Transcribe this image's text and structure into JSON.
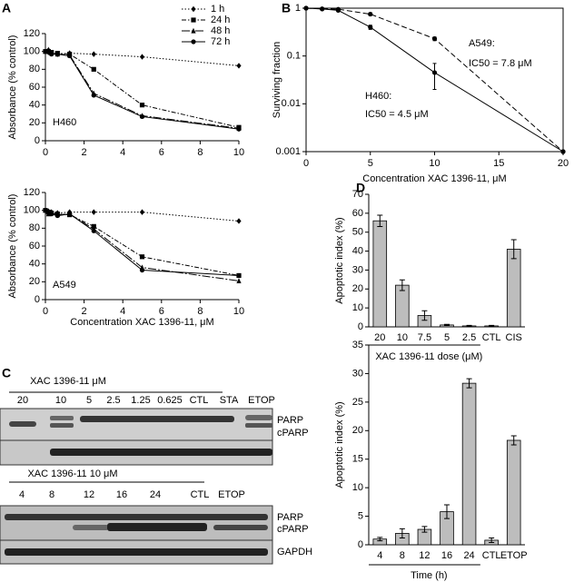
{
  "panel_labels": [
    "A",
    "B",
    "C",
    "D"
  ],
  "chart_data": [
    {
      "type": "line",
      "ylabel": "Absorbance (% control)",
      "annotations": [
        "H460"
      ],
      "x": [
        0,
        0.156,
        0.3125,
        0.625,
        1.25,
        2.5,
        5,
        10
      ],
      "xlim": [
        0,
        10
      ],
      "xticks": [
        0,
        2,
        4,
        6,
        8,
        10
      ],
      "ylim": [
        0,
        120
      ],
      "yticks": [
        0,
        20,
        40,
        60,
        80,
        100,
        120
      ],
      "legend": "upper right",
      "series": [
        {
          "name": "1 h",
          "color": "#000000",
          "dash": "dotted",
          "marker": "diamond",
          "values": [
            100,
            99,
            98,
            97,
            98,
            97,
            94,
            84
          ]
        },
        {
          "name": "24 h",
          "color": "#000000",
          "dash": "dashdot",
          "marker": "square",
          "values": [
            100,
            100,
            99,
            98,
            97,
            80,
            40,
            15
          ]
        },
        {
          "name": "48 h",
          "color": "#000000",
          "dash": "longdashdot",
          "marker": "triangle",
          "values": [
            100,
            102,
            98,
            97,
            96,
            53,
            28,
            14
          ]
        },
        {
          "name": "72 h",
          "color": "#000000",
          "dash": "solid",
          "marker": "circle",
          "values": [
            100,
            101,
            97,
            97,
            95,
            51,
            27,
            13
          ]
        }
      ]
    },
    {
      "type": "line",
      "ylabel": "Absorbance (% control)",
      "xlabel": "Concentration XAC 1396-11, μM",
      "annotations": [
        "A549"
      ],
      "x": [
        0,
        0.156,
        0.3125,
        0.625,
        1.25,
        2.5,
        5,
        10
      ],
      "xlim": [
        0,
        10
      ],
      "xticks": [
        0,
        2,
        4,
        6,
        8,
        10
      ],
      "ylim": [
        0,
        120
      ],
      "yticks": [
        0,
        20,
        40,
        60,
        80,
        100,
        120
      ],
      "series": [
        {
          "color": "#000000",
          "dash": "dotted",
          "marker": "diamond",
          "values": [
            100,
            99,
            98,
            97,
            98,
            98,
            98,
            88
          ]
        },
        {
          "color": "#000000",
          "dash": "dashdot",
          "marker": "square",
          "values": [
            100,
            98,
            97,
            96,
            95,
            82,
            48,
            27
          ]
        },
        {
          "color": "#000000",
          "dash": "longdashdot",
          "marker": "triangle",
          "values": [
            100,
            96,
            97,
            95,
            96,
            79,
            36,
            21
          ]
        },
        {
          "color": "#000000",
          "dash": "solid",
          "marker": "circle",
          "values": [
            100,
            97,
            96,
            94,
            96,
            77,
            33,
            27
          ]
        }
      ]
    },
    {
      "type": "line",
      "ylabel": "Surviving fraction",
      "xlabel": "Concentration XAC 1396-11, μM",
      "annotations": [
        "A549:",
        "IC50 = 7.8 μM",
        "H460:",
        "IC50 = 4.5 μM"
      ],
      "x": [
        0,
        1.25,
        2.5,
        5,
        10,
        20
      ],
      "log_y": true,
      "xlim": [
        0,
        20
      ],
      "xticks": [
        0,
        5,
        10,
        15,
        20
      ],
      "ylim": [
        0.001,
        1
      ],
      "yticks": [
        0.001,
        0.01,
        0.1,
        1
      ],
      "series": [
        {
          "color": "#000000",
          "dash": "dashed",
          "marker": "circle",
          "values": [
            1,
            0.97,
            0.95,
            0.75,
            0.23,
            0.001
          ],
          "errors": [
            0.02,
            0.02,
            0.02,
            0.05,
            0.02,
            0
          ]
        },
        {
          "color": "#000000",
          "dash": "solid",
          "marker": "circle",
          "values": [
            1,
            0.96,
            0.9,
            0.4,
            0.045,
            0.001
          ],
          "errors": [
            0.02,
            0.02,
            0.03,
            0.04,
            0.025,
            0
          ]
        }
      ]
    },
    {
      "type": "bar",
      "ylabel": "Apoptotic index (%)",
      "xlabel": "XAC 1396-11 dose (μM)",
      "color": "#bdbdbd",
      "categories": [
        "20",
        "10",
        "7.5",
        "5",
        "2.5",
        "CTL",
        "CIS"
      ],
      "values": [
        56,
        22,
        6,
        1,
        0.5,
        0.5,
        41
      ],
      "errors": [
        3,
        2.8,
        2.5,
        0.3,
        0.3,
        0.3,
        5
      ],
      "ylim": [
        0,
        70
      ],
      "yticks": [
        0,
        10,
        20,
        30,
        40,
        50,
        60,
        70
      ]
    },
    {
      "type": "bar",
      "ylabel": "Apoptotic index (%)",
      "xlabel": "Time (h)",
      "color": "#bdbdbd",
      "categories": [
        "4",
        "8",
        "12",
        "16",
        "24",
        "CTL",
        "ETOP"
      ],
      "values": [
        1,
        2,
        2.7,
        5.8,
        28.3,
        0.8,
        18.3
      ],
      "errors": [
        0.3,
        0.8,
        0.5,
        1.2,
        0.8,
        0.4,
        0.8
      ],
      "ylim": [
        0,
        35
      ],
      "yticks": [
        0,
        5,
        10,
        15,
        20,
        25,
        30,
        35
      ]
    }
  ],
  "blots": [
    {
      "title": "XAC 1396-11 μM",
      "lanes": [
        "20",
        "10",
        "5",
        "2.5",
        "1.25",
        "0.625",
        "CTL",
        "STA",
        "ETOP"
      ],
      "bands": [
        "PARP",
        "cPARP"
      ]
    },
    {
      "title": "XAC 1396-11 10 μM",
      "lanes": [
        "4",
        "8",
        "12",
        "16",
        "24",
        "CTL",
        "ETOP"
      ],
      "bands": [
        "PARP",
        "cPARP",
        "GAPDH"
      ]
    }
  ]
}
